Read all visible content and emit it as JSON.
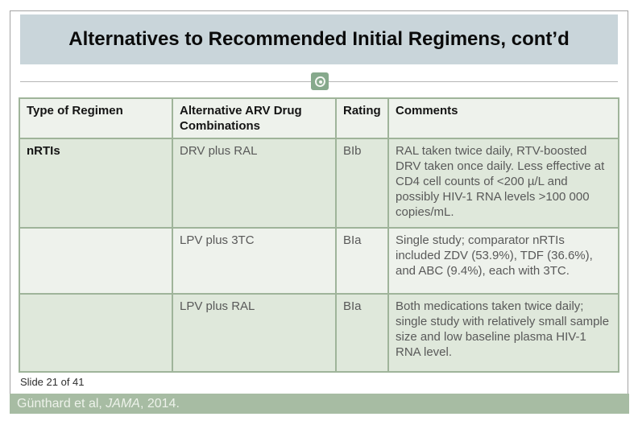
{
  "slide": {
    "title": "Alternatives to Recommended Initial Regimens, cont’d",
    "slide_counter": "Slide 21 of 41",
    "citation": {
      "authors": "Günthard et al, ",
      "journal_italic": "JAMA",
      "suffix": ", 2014."
    }
  },
  "table": {
    "headers": [
      "Type of Regimen",
      "Alternative ARV Drug Combinations",
      "Rating",
      "Comments"
    ],
    "rows": [
      {
        "regimen_type": "nRTIs",
        "combination": "DRV plus RAL",
        "rating": "BIb",
        "comments": "RAL taken twice daily, RTV-boosted DRV taken once daily. Less effective at CD4 cell counts of <200 µ/L and possibly HIV-1 RNA levels >100 000 copies/mL."
      },
      {
        "regimen_type": "",
        "combination": "LPV plus 3TC",
        "rating": "BIa",
        "comments": "Single study; comparator nRTIs included ZDV (53.9%), TDF (36.6%), and ABC (9.4%), each with 3TC."
      },
      {
        "regimen_type": "",
        "combination": "LPV plus RAL",
        "rating": "BIa",
        "comments": "Both medications taken twice daily; single study with relatively small sample size and low baseline plasma HIV-1 RNA level."
      }
    ]
  },
  "colors": {
    "title_bar_bg": "#c9d5da",
    "table_border": "#9fb49a",
    "row_light_bg": "#eef2ec",
    "row_dark_bg": "#dfe8db",
    "citation_bar_bg": "#a7bca3",
    "icon_green": "#86a98c"
  },
  "icons": {
    "slide_marker": "swirl-circle-icon"
  }
}
